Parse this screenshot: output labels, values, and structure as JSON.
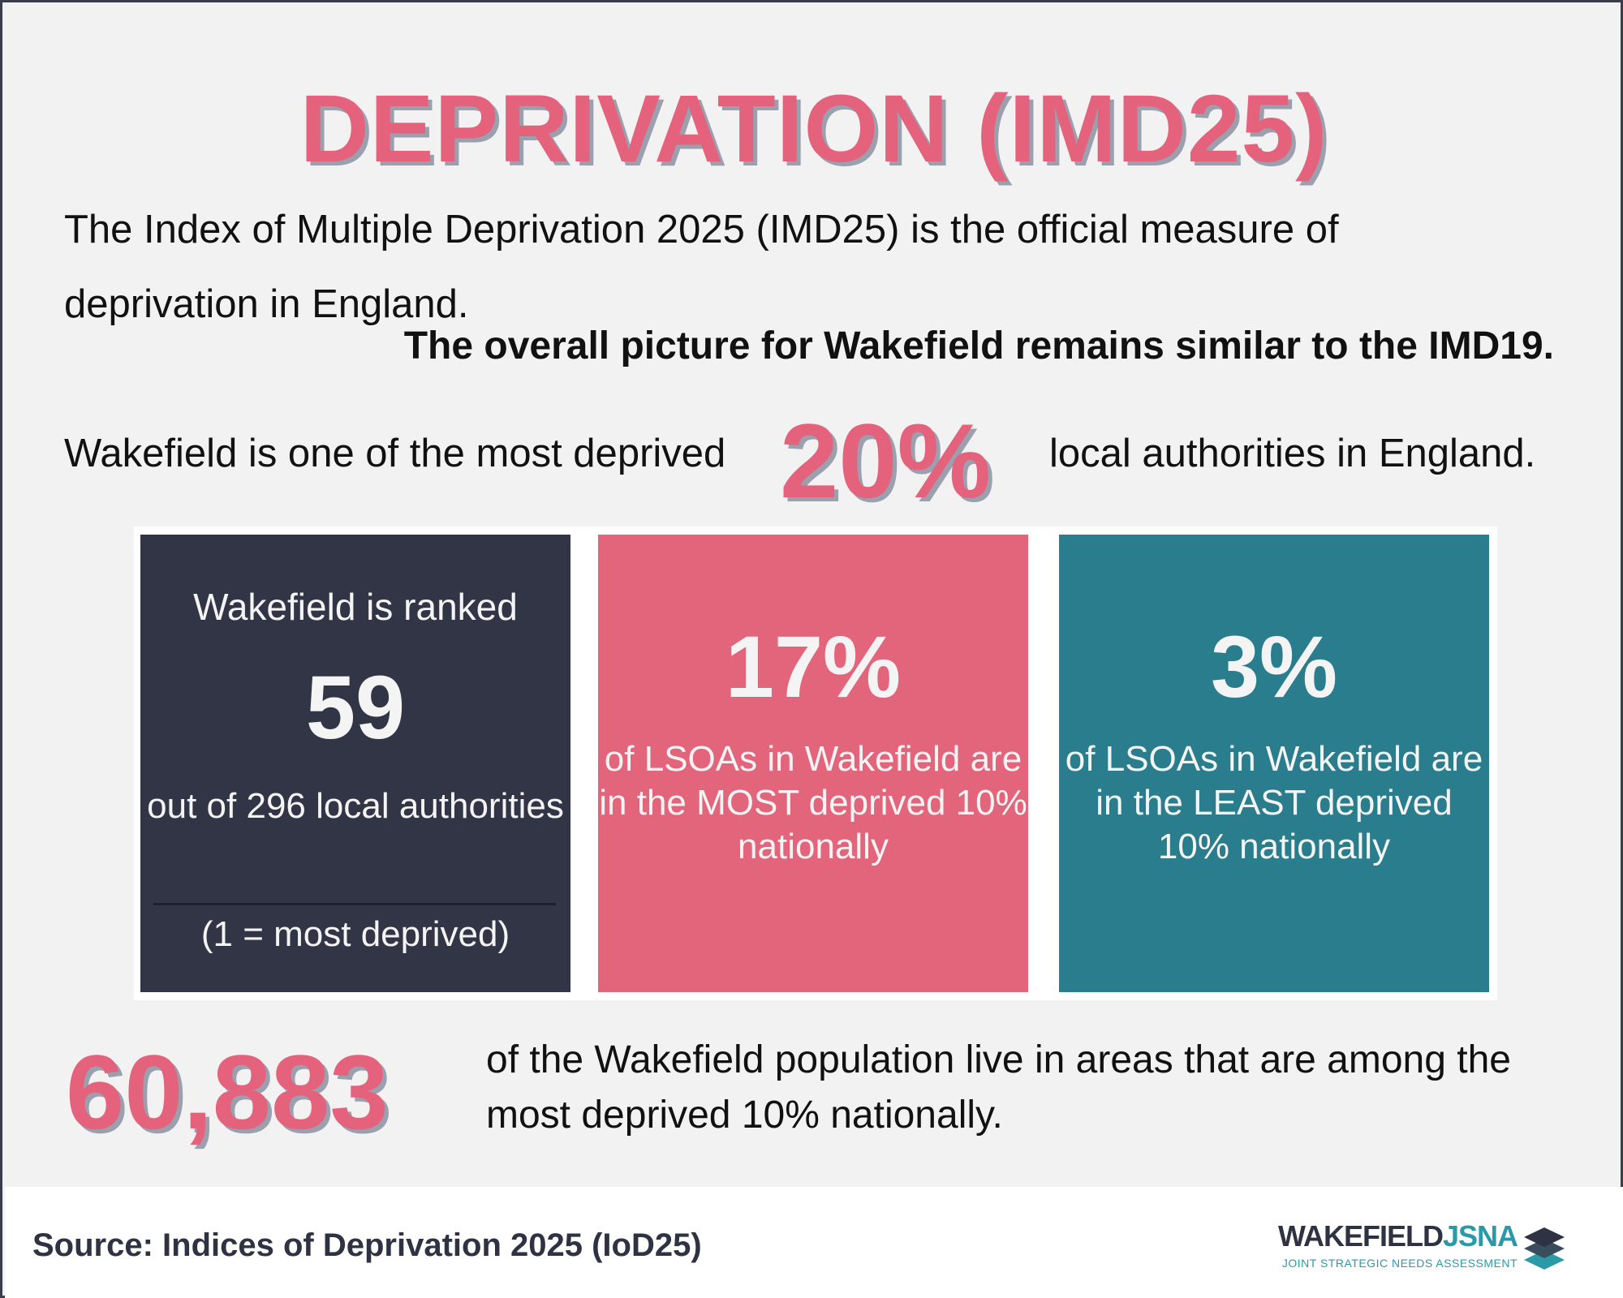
{
  "title": "DEPRIVATION (IMD25)",
  "intro": "The Index of Multiple Deprivation 2025 (IMD25) is the official measure of deprivation in England.",
  "highlight": "The overall picture for Wakefield remains similar to the IMD19.",
  "stat_line": {
    "prefix": "Wakefield is one of the most deprived",
    "value": "20%",
    "suffix": "local authorities in England."
  },
  "cards": {
    "rank": {
      "lead": "Wakefield is ranked",
      "value": "59",
      "sub": "out of 296 local authorities",
      "note": "(1 = most deprived)",
      "color": "#323546"
    },
    "most": {
      "value": "17%",
      "desc": "of LSOAs in Wakefield are in the MOST deprived 10% nationally",
      "color": "#e3657b"
    },
    "least": {
      "value": "3%",
      "desc": "of LSOAs in Wakefield are in the LEAST deprived 10% nationally",
      "color": "#2a7d8d"
    }
  },
  "population": {
    "value": "60,883",
    "desc": "of the Wakefield population live in areas that are among the most deprived 10% nationally."
  },
  "footer": {
    "source": "Source: Indices of Deprivation 2025 (IoD25)",
    "logo_word_1": "WAKEFIELD",
    "logo_word_2": "JSNA",
    "logo_tagline": "JOINT STRATEGIC NEEDS ASSESSMENT",
    "logo_icon": "stacked-layers-icon"
  },
  "colors": {
    "accent_pink": "#e5627d",
    "dark_navy": "#323546",
    "teal": "#2a7d8d",
    "background": "#f2f2f2"
  }
}
